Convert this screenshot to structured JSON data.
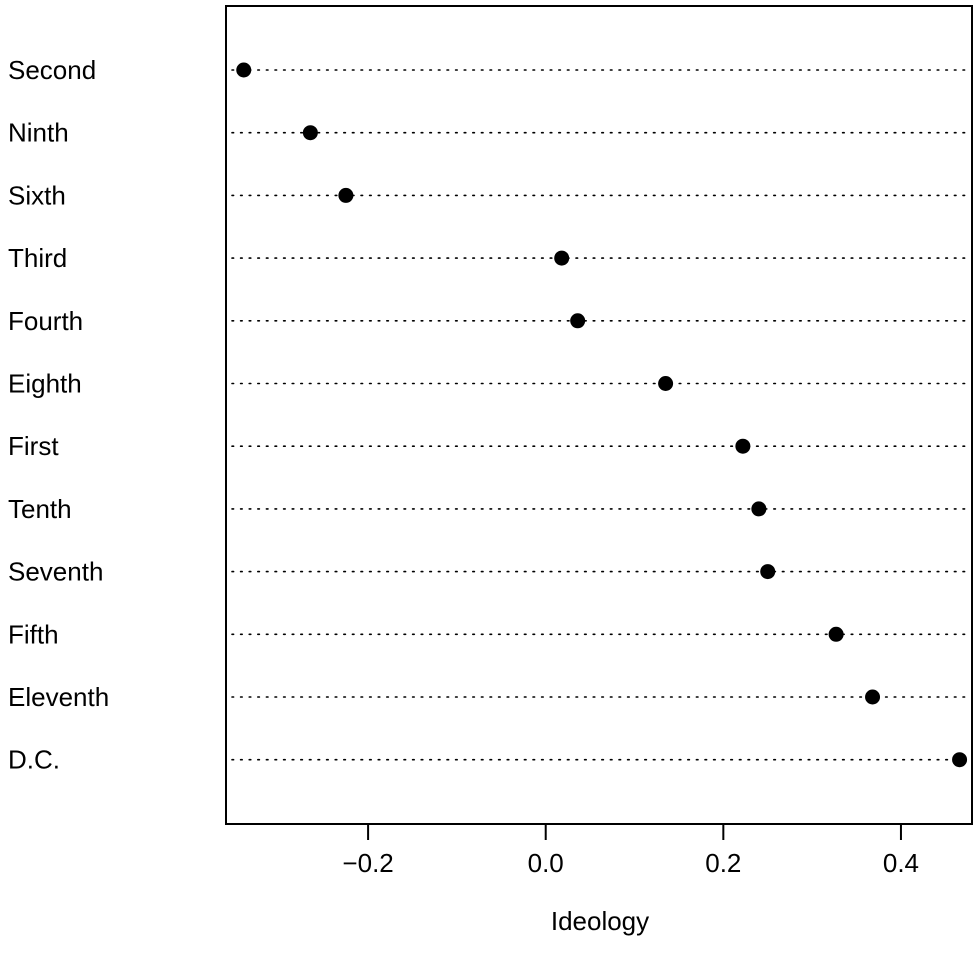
{
  "chart_data": {
    "type": "scatter",
    "subtype": "dot-plot",
    "categories": [
      "Second",
      "Ninth",
      "Sixth",
      "Third",
      "Fourth",
      "Eighth",
      "First",
      "Tenth",
      "Seventh",
      "Fifth",
      "Eleventh",
      "D.C."
    ],
    "values": [
      -0.34,
      -0.265,
      -0.225,
      0.018,
      0.036,
      0.135,
      0.222,
      0.24,
      0.25,
      0.327,
      0.368,
      0.466
    ],
    "x_ticks": [
      -0.2,
      0.0,
      0.2,
      0.4
    ],
    "x_tick_labels": [
      "−0.2",
      "0.0",
      "0.2",
      "0.4"
    ],
    "xlabel": "Ideology",
    "xlim": [
      -0.36,
      0.48
    ],
    "grid": "dotted horizontal guide per category",
    "point_color": "#000000"
  }
}
